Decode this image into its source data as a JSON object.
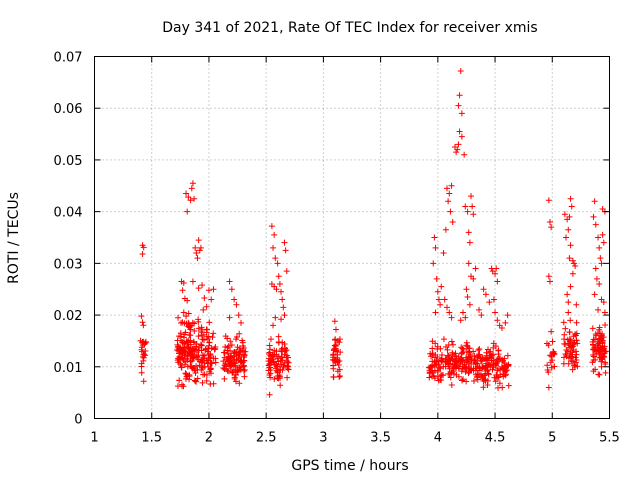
{
  "chart_data": {
    "type": "scatter",
    "title": "Day 341 of 2021, Rate Of TEC Index for receiver xmis",
    "xlabel": "GPS time / hours",
    "ylabel": "ROTI / TECUs",
    "xlim": [
      1,
      5.5
    ],
    "ylim": [
      0,
      0.07
    ],
    "xticks": [
      1,
      1.5,
      2,
      2.5,
      3,
      3.5,
      4,
      4.5,
      5,
      5.5
    ],
    "xtick_labels": [
      "1",
      "1.5",
      "2",
      "2.5",
      "3",
      "3.5",
      "4",
      "4.5",
      "5",
      "5.5"
    ],
    "yticks": [
      0,
      0.01,
      0.02,
      0.03,
      0.04,
      0.05,
      0.06,
      0.07
    ],
    "ytick_labels": [
      "0",
      "0.01",
      "0.02",
      "0.03",
      "0.04",
      "0.05",
      "0.06",
      "0.07"
    ],
    "grid": true,
    "marker": "+",
    "color": "#ff0000",
    "series": [
      {
        "name": "ROTI",
        "clusters": [
          {
            "x_range": [
              1.4,
              1.45
            ],
            "y_range": [
              0.007,
              0.02
            ],
            "count": 22
          },
          {
            "x_range": [
              1.72,
              2.06
            ],
            "y_range": [
              0.004,
              0.022
            ],
            "count": 230
          },
          {
            "x_range": [
              2.12,
              2.32
            ],
            "y_range": [
              0.006,
              0.017
            ],
            "count": 110
          },
          {
            "x_range": [
              2.52,
              2.7
            ],
            "y_range": [
              0.005,
              0.017
            ],
            "count": 90
          },
          {
            "x_range": [
              3.08,
              3.15
            ],
            "y_range": [
              0.007,
              0.018
            ],
            "count": 40
          },
          {
            "x_range": [
              3.92,
              4.62
            ],
            "y_range": [
              0.005,
              0.016
            ],
            "count": 320
          },
          {
            "x_range": [
              4.95,
              5.02
            ],
            "y_range": [
              0.006,
              0.017
            ],
            "count": 18
          },
          {
            "x_range": [
              5.1,
              5.22
            ],
            "y_range": [
              0.008,
              0.02
            ],
            "count": 60
          },
          {
            "x_range": [
              5.35,
              5.47
            ],
            "y_range": [
              0.007,
              0.02
            ],
            "count": 80
          }
        ],
        "points": [
          [
            1.42,
            0.0335
          ],
          [
            1.43,
            0.0331
          ],
          [
            1.42,
            0.0318
          ],
          [
            1.41,
            0.0198
          ],
          [
            1.42,
            0.0186
          ],
          [
            1.42,
            0.0148
          ],
          [
            1.43,
            0.0072
          ],
          [
            1.76,
            0.0265
          ],
          [
            1.78,
            0.0262
          ],
          [
            1.77,
            0.0248
          ],
          [
            1.79,
            0.0232
          ],
          [
            1.81,
            0.0228
          ],
          [
            1.78,
            0.0205
          ],
          [
            1.8,
            0.0198
          ],
          [
            1.82,
            0.0185
          ],
          [
            1.83,
            0.0176
          ],
          [
            1.8,
            0.0435
          ],
          [
            1.82,
            0.0428
          ],
          [
            1.84,
            0.0422
          ],
          [
            1.86,
            0.0455
          ],
          [
            1.85,
            0.0445
          ],
          [
            1.87,
            0.0425
          ],
          [
            1.81,
            0.04
          ],
          [
            1.88,
            0.033
          ],
          [
            1.89,
            0.032
          ],
          [
            1.9,
            0.031
          ],
          [
            1.91,
            0.0345
          ],
          [
            1.93,
            0.033
          ],
          [
            1.92,
            0.0325
          ],
          [
            1.86,
            0.0265
          ],
          [
            1.91,
            0.0252
          ],
          [
            1.94,
            0.0258
          ],
          [
            1.96,
            0.0233
          ],
          [
            1.98,
            0.0216
          ],
          [
            2.0,
            0.0248
          ],
          [
            2.02,
            0.023
          ],
          [
            2.04,
            0.025
          ],
          [
            1.95,
            0.021
          ],
          [
            2.18,
            0.0265
          ],
          [
            2.2,
            0.025
          ],
          [
            2.22,
            0.023
          ],
          [
            2.24,
            0.022
          ],
          [
            2.18,
            0.0195
          ],
          [
            2.26,
            0.02
          ],
          [
            2.28,
            0.0185
          ],
          [
            2.55,
            0.0372
          ],
          [
            2.57,
            0.0355
          ],
          [
            2.56,
            0.033
          ],
          [
            2.58,
            0.031
          ],
          [
            2.55,
            0.026
          ],
          [
            2.57,
            0.0255
          ],
          [
            2.59,
            0.025
          ],
          [
            2.6,
            0.03
          ],
          [
            2.61,
            0.0275
          ],
          [
            2.62,
            0.026
          ],
          [
            2.63,
            0.0245
          ],
          [
            2.64,
            0.023
          ],
          [
            2.66,
            0.034
          ],
          [
            2.67,
            0.0325
          ],
          [
            2.68,
            0.0285
          ],
          [
            2.65,
            0.0215
          ],
          [
            2.66,
            0.02
          ],
          [
            2.63,
            0.0192
          ],
          [
            2.58,
            0.0195
          ],
          [
            2.56,
            0.018
          ],
          [
            2.53,
            0.0046
          ],
          [
            3.1,
            0.0188
          ],
          [
            3.11,
            0.0172
          ],
          [
            3.09,
            0.008
          ],
          [
            3.97,
            0.035
          ],
          [
            3.98,
            0.033
          ],
          [
            3.96,
            0.03
          ],
          [
            3.99,
            0.027
          ],
          [
            4.0,
            0.0245
          ],
          [
            4.01,
            0.023
          ],
          [
            4.02,
            0.022
          ],
          [
            3.98,
            0.0205
          ],
          [
            4.03,
            0.0255
          ],
          [
            4.05,
            0.032
          ],
          [
            4.07,
            0.0365
          ],
          [
            4.08,
            0.0445
          ],
          [
            4.1,
            0.0435
          ],
          [
            4.12,
            0.045
          ],
          [
            4.09,
            0.042
          ],
          [
            4.11,
            0.04
          ],
          [
            4.13,
            0.038
          ],
          [
            4.06,
            0.023
          ],
          [
            4.08,
            0.0215
          ],
          [
            4.1,
            0.0205
          ],
          [
            4.12,
            0.0195
          ],
          [
            4.15,
            0.0525
          ],
          [
            4.16,
            0.0515
          ],
          [
            4.17,
            0.052
          ],
          [
            4.18,
            0.053
          ],
          [
            4.19,
            0.0555
          ],
          [
            4.21,
            0.0545
          ],
          [
            4.23,
            0.051
          ],
          [
            4.18,
            0.0605
          ],
          [
            4.19,
            0.0625
          ],
          [
            4.2,
            0.0672
          ],
          [
            4.21,
            0.059
          ],
          [
            4.24,
            0.041
          ],
          [
            4.26,
            0.04
          ],
          [
            4.27,
            0.036
          ],
          [
            4.28,
            0.034
          ],
          [
            4.29,
            0.043
          ],
          [
            4.3,
            0.041
          ],
          [
            4.31,
            0.0395
          ],
          [
            4.27,
            0.03
          ],
          [
            4.29,
            0.0275
          ],
          [
            4.31,
            0.027
          ],
          [
            4.33,
            0.029
          ],
          [
            4.25,
            0.025
          ],
          [
            4.26,
            0.0235
          ],
          [
            4.28,
            0.022
          ],
          [
            4.22,
            0.0205
          ],
          [
            4.24,
            0.0195
          ],
          [
            4.2,
            0.019
          ],
          [
            4.36,
            0.021
          ],
          [
            4.38,
            0.02
          ],
          [
            4.4,
            0.025
          ],
          [
            4.42,
            0.024
          ],
          [
            4.45,
            0.0225
          ],
          [
            4.47,
            0.029
          ],
          [
            4.48,
            0.0285
          ],
          [
            4.5,
            0.028
          ],
          [
            4.51,
            0.029
          ],
          [
            4.52,
            0.0265
          ],
          [
            4.49,
            0.023
          ],
          [
            4.5,
            0.0205
          ],
          [
            4.52,
            0.019
          ],
          [
            4.54,
            0.018
          ],
          [
            4.56,
            0.0175
          ],
          [
            4.59,
            0.0185
          ],
          [
            4.61,
            0.02
          ],
          [
            4.97,
            0.0422
          ],
          [
            4.98,
            0.038
          ],
          [
            4.99,
            0.037
          ],
          [
            4.97,
            0.0275
          ],
          [
            4.98,
            0.0265
          ],
          [
            4.99,
            0.0168
          ],
          [
            4.97,
            0.006
          ],
          [
            5.11,
            0.0395
          ],
          [
            5.13,
            0.0385
          ],
          [
            5.15,
            0.039
          ],
          [
            5.16,
            0.0425
          ],
          [
            5.17,
            0.041
          ],
          [
            5.14,
            0.0365
          ],
          [
            5.12,
            0.035
          ],
          [
            5.16,
            0.0335
          ],
          [
            5.15,
            0.031
          ],
          [
            5.18,
            0.0305
          ],
          [
            5.19,
            0.03
          ],
          [
            5.2,
            0.0295
          ],
          [
            5.18,
            0.028
          ],
          [
            5.16,
            0.0255
          ],
          [
            5.13,
            0.024
          ],
          [
            5.14,
            0.0225
          ],
          [
            5.21,
            0.022
          ],
          [
            5.14,
            0.0205
          ],
          [
            5.36,
            0.039
          ],
          [
            5.37,
            0.042
          ],
          [
            5.38,
            0.0375
          ],
          [
            5.4,
            0.035
          ],
          [
            5.41,
            0.033
          ],
          [
            5.42,
            0.031
          ],
          [
            5.43,
            0.03
          ],
          [
            5.38,
            0.029
          ],
          [
            5.39,
            0.027
          ],
          [
            5.41,
            0.026
          ],
          [
            5.37,
            0.024
          ],
          [
            5.43,
            0.023
          ],
          [
            5.45,
            0.0225
          ],
          [
            5.4,
            0.021
          ],
          [
            5.44,
            0.0355
          ],
          [
            5.45,
            0.034
          ],
          [
            5.46,
            0.04
          ],
          [
            5.44,
            0.0405
          ],
          [
            5.46,
            0.0205
          ]
        ]
      }
    ]
  }
}
